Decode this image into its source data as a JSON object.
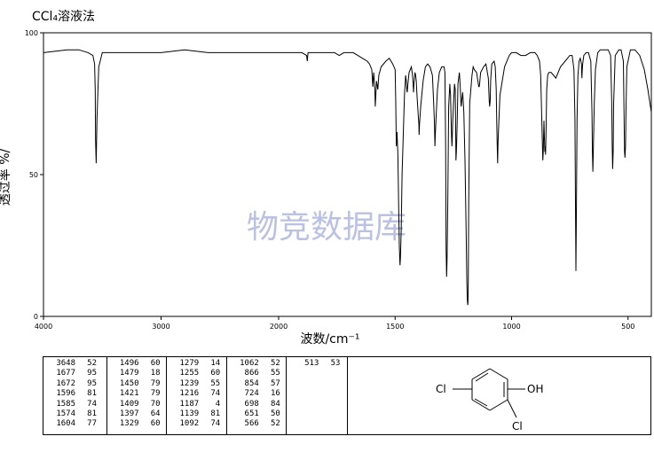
{
  "header": {
    "solvent": "CCl₄溶液法"
  },
  "watermark": "物竞数据库",
  "chart_data": {
    "type": "line",
    "xlabel": "波数/cm⁻¹",
    "ylabel": "透过率 %/",
    "x_ticks": [
      "4000",
      "3000",
      "2000",
      "1500",
      "1000",
      "500"
    ],
    "y_ticks": [
      "100",
      "50",
      "0"
    ],
    "xlim": [
      4000,
      400
    ],
    "ylim": [
      0,
      100
    ],
    "series": [
      {
        "x": [
          4000,
          3800,
          3700,
          3620,
          3580,
          3565,
          3560,
          3557,
          3552,
          3545,
          3530,
          3500,
          3300,
          3000,
          2800,
          2600,
          2400,
          2200,
          2000,
          1900,
          1880,
          1877,
          1874,
          1860,
          1800,
          1760,
          1740,
          1720,
          1700,
          1690,
          1680,
          1660,
          1640,
          1620,
          1610,
          1600,
          1596,
          1592,
          1590,
          1587,
          1585,
          1582,
          1580,
          1576,
          1574,
          1570,
          1560,
          1540,
          1525,
          1510,
          1500,
          1497,
          1495,
          1492,
          1488,
          1485,
          1482,
          1480,
          1479,
          1477,
          1474,
          1470,
          1460,
          1455,
          1452,
          1450,
          1448,
          1445,
          1440,
          1430,
          1425,
          1422,
          1421,
          1419,
          1415,
          1412,
          1409,
          1406,
          1400,
          1398,
          1397,
          1395,
          1390,
          1380,
          1370,
          1360,
          1350,
          1340,
          1335,
          1331,
          1329,
          1327,
          1323,
          1318,
          1310,
          1300,
          1290,
          1286,
          1283,
          1281,
          1279,
          1277,
          1274,
          1270,
          1265,
          1262,
          1258,
          1256,
          1255,
          1253,
          1250,
          1245,
          1242,
          1240,
          1239,
          1237,
          1234,
          1230,
          1224,
          1220,
          1218,
          1216,
          1214,
          1210,
          1205,
          1200,
          1195,
          1192,
          1190,
          1188,
          1187,
          1186,
          1184,
          1180,
          1170,
          1165,
          1160,
          1150,
          1143,
          1141,
          1139,
          1137,
          1133,
          1120,
          1110,
          1100,
          1096,
          1094,
          1092,
          1090,
          1085,
          1075,
          1070,
          1066,
          1064,
          1062,
          1060,
          1058,
          1050,
          1030,
          1010,
          1000,
          980,
          960,
          940,
          920,
          900,
          890,
          880,
          875,
          872,
          869,
          866,
          864,
          861,
          859,
          857,
          855,
          854,
          852,
          849,
          845,
          840,
          830,
          820,
          810,
          790,
          770,
          750,
          740,
          732,
          728,
          726,
          724,
          722,
          719,
          715,
          710,
          705,
          700,
          699,
          698,
          697,
          695,
          690,
          680,
          670,
          660,
          655,
          653,
          651,
          649,
          645,
          640,
          630,
          620,
          610,
          600,
          585,
          575,
          570,
          568,
          566,
          564,
          562,
          555,
          540,
          530,
          520,
          517,
          515,
          513,
          511,
          509,
          505,
          490,
          470,
          450,
          430,
          415,
          400
        ],
        "y": [
          93,
          94,
          94,
          93,
          92,
          89,
          80,
          62,
          54,
          70,
          88,
          93,
          93,
          93,
          94,
          93,
          93,
          93,
          93,
          93,
          92,
          90,
          93,
          93,
          93,
          93,
          92,
          93,
          93,
          93,
          93,
          92,
          91,
          90,
          89,
          87,
          81,
          86,
          84,
          80,
          74,
          79,
          83,
          81,
          80,
          85,
          88,
          90,
          91,
          89,
          87,
          75,
          60,
          65,
          57,
          40,
          25,
          20,
          18,
          21,
          30,
          50,
          78,
          85,
          83,
          80,
          79,
          82,
          86,
          88,
          85,
          81,
          79,
          82,
          86,
          85,
          83,
          78,
          70,
          68,
          64,
          68,
          74,
          83,
          88,
          89,
          88,
          85,
          76,
          68,
          60,
          65,
          72,
          80,
          86,
          88,
          88,
          86,
          60,
          24,
          14,
          20,
          40,
          74,
          82,
          78,
          64,
          60,
          62,
          68,
          74,
          82,
          80,
          66,
          55,
          58,
          67,
          82,
          86,
          80,
          76,
          74,
          76,
          79,
          72,
          55,
          30,
          12,
          6,
          4,
          5,
          12,
          40,
          75,
          85,
          88,
          87,
          86,
          82,
          81,
          81,
          82,
          86,
          88,
          89,
          84,
          76,
          74,
          76,
          83,
          89,
          90,
          88,
          80,
          70,
          62,
          54,
          62,
          78,
          88,
          92,
          93,
          93,
          92,
          92,
          93,
          93,
          92,
          90,
          85,
          75,
          65,
          55,
          58,
          69,
          63,
          58,
          60,
          57,
          66,
          80,
          85,
          86,
          86,
          85,
          84,
          88,
          90,
          92,
          92,
          87,
          70,
          45,
          16,
          35,
          70,
          85,
          90,
          91,
          89,
          86,
          84,
          86,
          89,
          92,
          93,
          93,
          90,
          72,
          58,
          51,
          58,
          75,
          87,
          93,
          94,
          94,
          94,
          94,
          92,
          75,
          60,
          52,
          58,
          75,
          92,
          94,
          94,
          90,
          70,
          58,
          56,
          60,
          72,
          88,
          94,
          94,
          92,
          87,
          80,
          72
        ]
      }
    ]
  },
  "peak_table": {
    "columns": [
      [
        [
          "3648",
          "52"
        ],
        [
          "1677",
          "95"
        ],
        [
          "1672",
          "95"
        ],
        [
          "1596",
          "81"
        ],
        [
          "1585",
          "74"
        ],
        [
          "1574",
          "81"
        ],
        [
          "1604",
          "77"
        ]
      ],
      [
        [
          "1496",
          "60"
        ],
        [
          "1479",
          "18"
        ],
        [
          "1450",
          "79"
        ],
        [
          "1421",
          "79"
        ],
        [
          "1409",
          "70"
        ],
        [
          "1397",
          "64"
        ],
        [
          "1329",
          "60"
        ]
      ],
      [
        [
          "1279",
          "14"
        ],
        [
          "1255",
          "60"
        ],
        [
          "1239",
          "55"
        ],
        [
          "1216",
          "74"
        ],
        [
          "1187",
          "4"
        ],
        [
          "1139",
          "81"
        ],
        [
          "1092",
          "74"
        ]
      ],
      [
        [
          "1062",
          "52"
        ],
        [
          "866",
          "55"
        ],
        [
          "854",
          "57"
        ],
        [
          "724",
          "16"
        ],
        [
          "698",
          "84"
        ],
        [
          "651",
          "50"
        ],
        [
          "566",
          "52"
        ]
      ],
      [
        [
          "513",
          "53"
        ]
      ]
    ]
  },
  "structure": {
    "atoms": {
      "cl_left": "Cl",
      "oh": "OH",
      "cl_bottom": "Cl"
    }
  }
}
